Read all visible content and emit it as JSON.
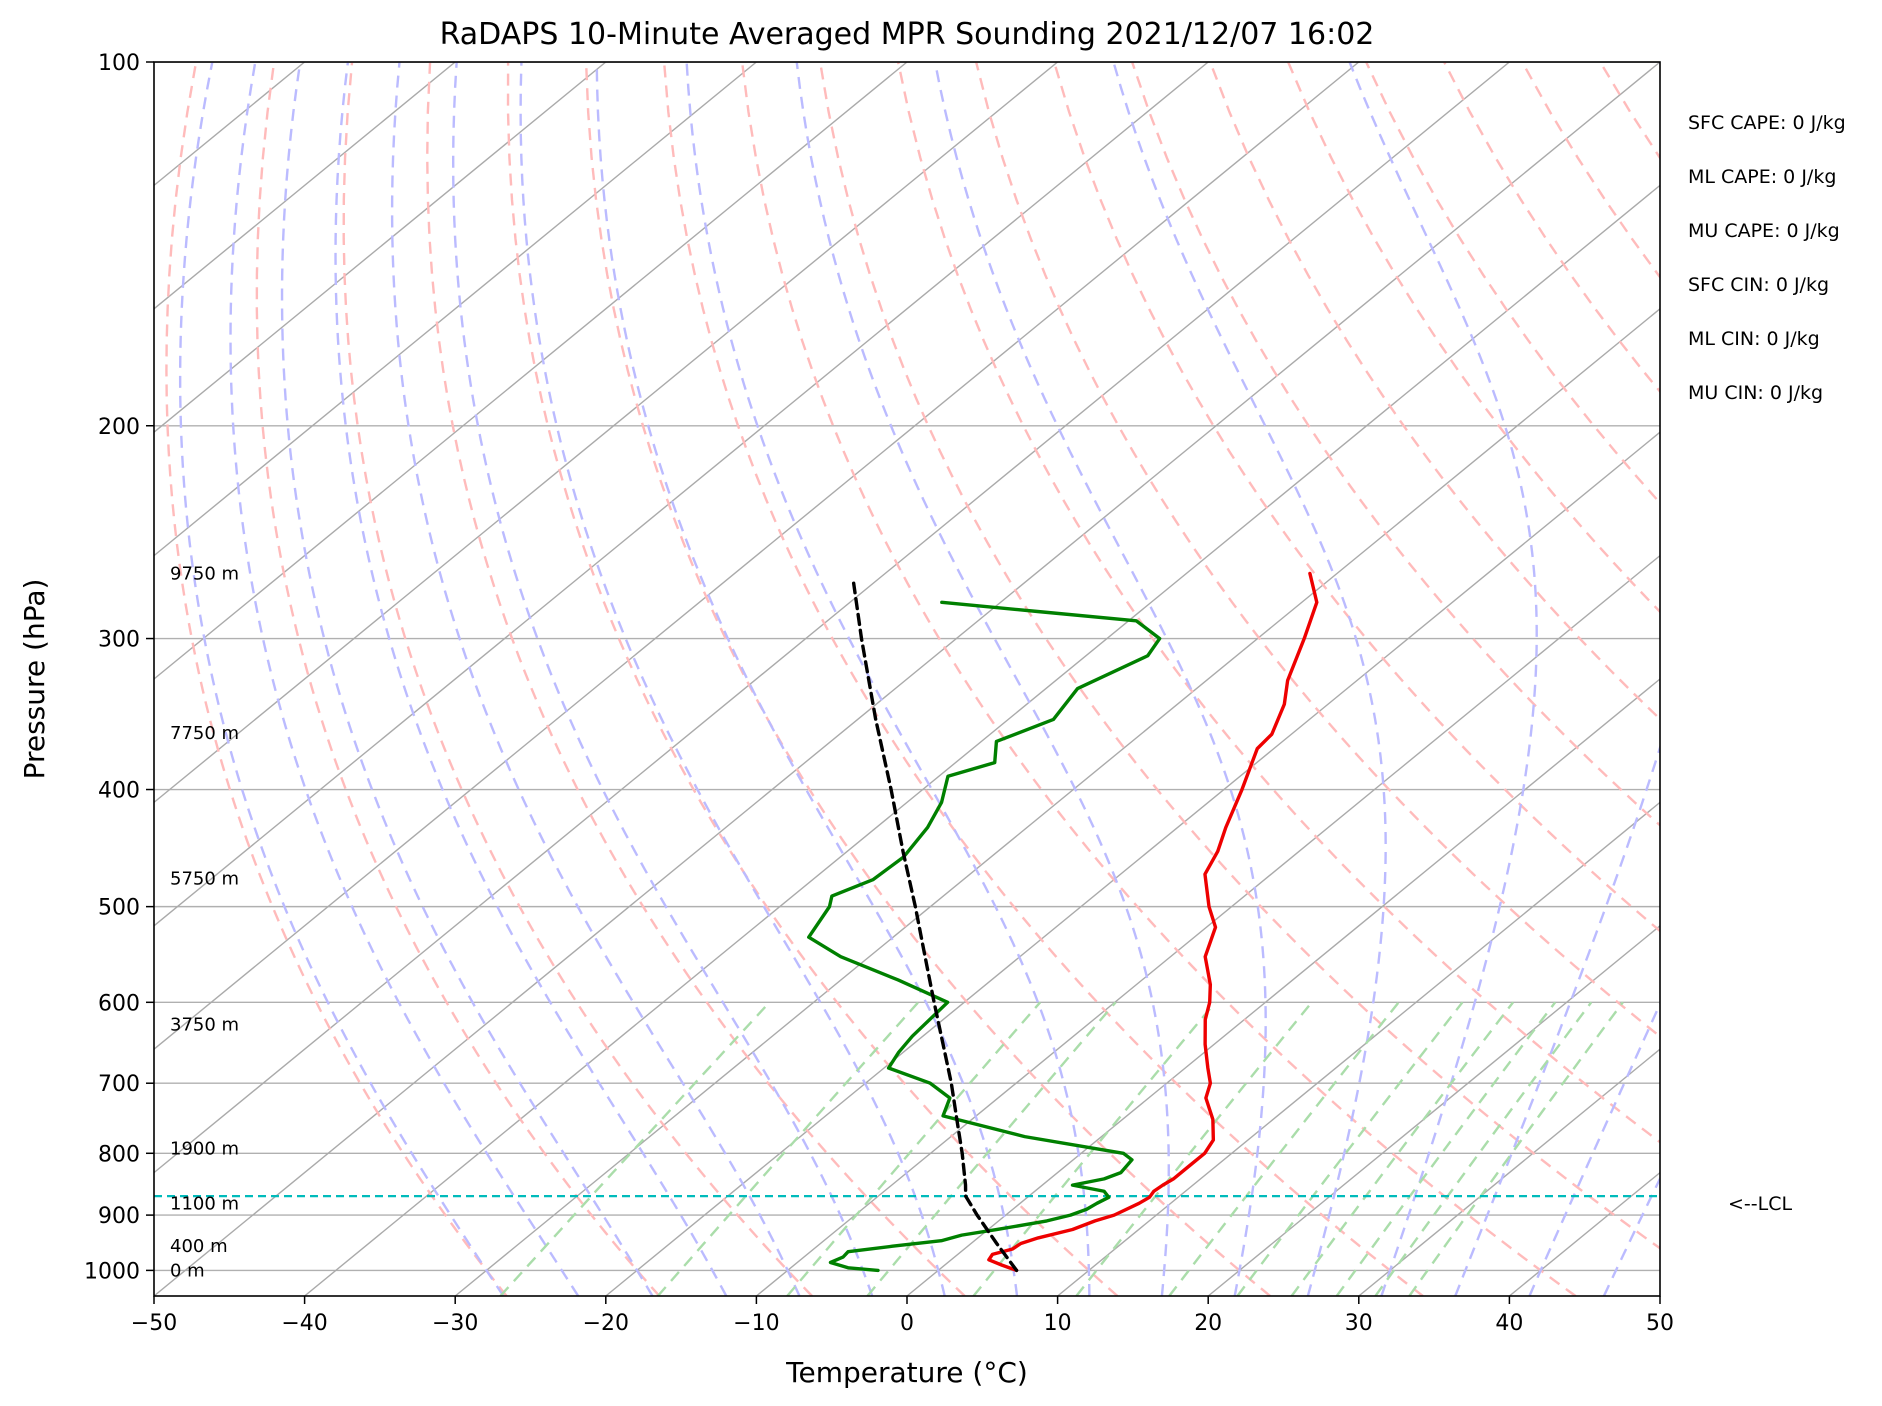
{
  "chart_data": {
    "type": "skew-t log-p sounding",
    "title": "RaDAPS 10-Minute Averaged MPR Sounding 2021/12/07 16:02",
    "xlabel": "Temperature (°C)",
    "ylabel": "Pressure (hPa)",
    "xlim": [
      -50,
      50
    ],
    "ylim": [
      1050,
      100
    ],
    "x_ticks": [
      -50,
      -40,
      -30,
      -20,
      -10,
      0,
      10,
      20,
      30,
      40,
      50
    ],
    "x_tick_labels": [
      "−50",
      "−40",
      "−30",
      "−20",
      "−10",
      "0",
      "10",
      "20",
      "30",
      "40",
      "50"
    ],
    "y_ticks": [
      100,
      200,
      300,
      400,
      500,
      600,
      700,
      800,
      900,
      1000
    ],
    "y_tick_labels": [
      "100",
      "200",
      "300",
      "400",
      "500",
      "600",
      "700",
      "800",
      "900",
      "1000"
    ],
    "y_scale": "log",
    "grid": true,
    "series": [
      {
        "kind": "temperature",
        "color": "#ee0000",
        "points": [
          [
            1000,
            5.2
          ],
          [
            990,
            3.8
          ],
          [
            980,
            2.5
          ],
          [
            970,
            2.3
          ],
          [
            960,
            3.2
          ],
          [
            950,
            3.3
          ],
          [
            940,
            4.0
          ],
          [
            925,
            5.6
          ],
          [
            910,
            6.4
          ],
          [
            900,
            7.2
          ],
          [
            880,
            7.9
          ],
          [
            870,
            8.1
          ],
          [
            860,
            7.9
          ],
          [
            850,
            8.0
          ],
          [
            840,
            8.2
          ],
          [
            820,
            8.2
          ],
          [
            800,
            8.2
          ],
          [
            780,
            7.7
          ],
          [
            750,
            6.0
          ],
          [
            720,
            3.8
          ],
          [
            700,
            2.9
          ],
          [
            680,
            1.5
          ],
          [
            650,
            -0.6
          ],
          [
            620,
            -2.6
          ],
          [
            600,
            -3.7
          ],
          [
            580,
            -5.1
          ],
          [
            550,
            -7.7
          ],
          [
            520,
            -9.4
          ],
          [
            500,
            -11.5
          ],
          [
            470,
            -14.4
          ],
          [
            450,
            -15.4
          ],
          [
            430,
            -16.8
          ],
          [
            400,
            -18.8
          ],
          [
            370,
            -21.1
          ],
          [
            360,
            -21.3
          ],
          [
            340,
            -22.9
          ],
          [
            325,
            -24.6
          ],
          [
            300,
            -26.9
          ],
          [
            280,
            -29.0
          ],
          [
            265,
            -31.8
          ]
        ]
      },
      {
        "kind": "dewpoint",
        "color": "#008000",
        "points": [
          [
            1000,
            -4.0
          ],
          [
            995,
            -6.2
          ],
          [
            985,
            -7.8
          ],
          [
            975,
            -7.4
          ],
          [
            965,
            -7.5
          ],
          [
            955,
            -5.0
          ],
          [
            945,
            -2.2
          ],
          [
            935,
            -1.3
          ],
          [
            925,
            0.6
          ],
          [
            910,
            3.2
          ],
          [
            900,
            4.3
          ],
          [
            890,
            4.9
          ],
          [
            880,
            5.1
          ],
          [
            870,
            5.4
          ],
          [
            860,
            4.6
          ],
          [
            850,
            2.0
          ],
          [
            840,
            3.6
          ],
          [
            830,
            4.2
          ],
          [
            810,
            3.9
          ],
          [
            800,
            2.8
          ],
          [
            775,
            -5.1
          ],
          [
            745,
            -12.2
          ],
          [
            720,
            -13.2
          ],
          [
            700,
            -15.7
          ],
          [
            680,
            -19.7
          ],
          [
            660,
            -20.3
          ],
          [
            640,
            -20.7
          ],
          [
            600,
            -21.1
          ],
          [
            575,
            -26.2
          ],
          [
            550,
            -31.9
          ],
          [
            530,
            -35.6
          ],
          [
            500,
            -36.7
          ],
          [
            490,
            -37.4
          ],
          [
            475,
            -36.0
          ],
          [
            455,
            -35.8
          ],
          [
            430,
            -36.6
          ],
          [
            410,
            -37.7
          ],
          [
            390,
            -39.4
          ],
          [
            380,
            -37.4
          ],
          [
            365,
            -39.0
          ],
          [
            350,
            -37.0
          ],
          [
            330,
            -37.9
          ],
          [
            310,
            -35.9
          ],
          [
            300,
            -36.5
          ],
          [
            290,
            -39.5
          ],
          [
            285,
            -46.7
          ],
          [
            280,
            -53.9
          ]
        ]
      },
      {
        "kind": "parcel profile",
        "color": "#000000",
        "style": "dashed",
        "points": [
          [
            1000,
            5.2
          ],
          [
            950,
            1.7
          ],
          [
            900,
            -1.9
          ],
          [
            868,
            -4.2
          ],
          [
            850,
            -5.1
          ],
          [
            800,
            -7.9
          ],
          [
            750,
            -11.0
          ],
          [
            700,
            -14.3
          ],
          [
            650,
            -18.0
          ],
          [
            600,
            -22.0
          ],
          [
            550,
            -26.3
          ],
          [
            500,
            -31.0
          ],
          [
            450,
            -36.3
          ],
          [
            400,
            -42.1
          ],
          [
            350,
            -48.8
          ],
          [
            300,
            -56.3
          ],
          [
            270,
            -61.3
          ]
        ]
      }
    ],
    "lcl": {
      "pressure_hpa": 868,
      "label": "<--LCL",
      "color": "#00bbbb"
    },
    "height_labels": [
      {
        "pressure_hpa": 1000,
        "text": "0 m"
      },
      {
        "pressure_hpa": 955,
        "text": "400 m"
      },
      {
        "pressure_hpa": 880,
        "text": "1100 m"
      },
      {
        "pressure_hpa": 793,
        "text": "1900 m"
      },
      {
        "pressure_hpa": 626,
        "text": "3750 m"
      },
      {
        "pressure_hpa": 474,
        "text": "5750 m"
      },
      {
        "pressure_hpa": 359,
        "text": "7750 m"
      },
      {
        "pressure_hpa": 265,
        "text": "9750 m"
      }
    ],
    "stats": [
      "SFC CAPE: 0 J/kg",
      "ML CAPE: 0 J/kg",
      "MU CAPE: 0 J/kg",
      "SFC CIN: 0 J/kg",
      "ML CIN: 0 J/kg",
      "MU CIN: 0 J/kg"
    ],
    "reference_lines": {
      "isotherms_color": "#aaaaaa",
      "dry_adiabats_color": "#ffbbbb",
      "moist_adiabats_color": "#bbbbff",
      "mixing_ratio_color": "#aaddaa"
    }
  }
}
